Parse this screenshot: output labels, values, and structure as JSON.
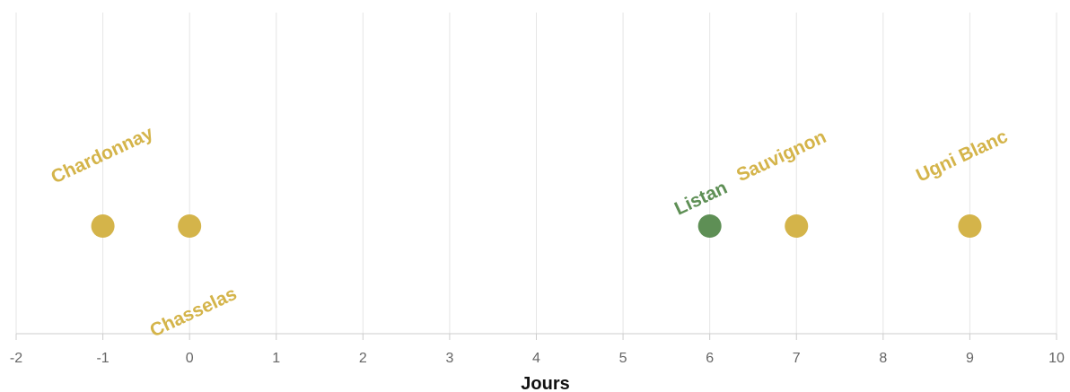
{
  "chart_data": {
    "type": "scatter",
    "xlabel": "Jours",
    "ylabel": "",
    "xlim": [
      -2,
      10
    ],
    "x_ticks": [
      -2,
      -1,
      0,
      1,
      2,
      3,
      4,
      5,
      6,
      7,
      8,
      9,
      10
    ],
    "grid": true,
    "points": [
      {
        "label": "Chardonnay",
        "x": -1,
        "color": "#D4B44A",
        "label_position": "above"
      },
      {
        "label": "Chasselas",
        "x": 0,
        "color": "#D4B44A",
        "label_position": "below"
      },
      {
        "label": "Listan",
        "x": 6,
        "color": "#5E8F55",
        "label_position": "above"
      },
      {
        "label": "Sauvignon",
        "x": 7,
        "color": "#D4B44A",
        "label_position": "above"
      },
      {
        "label": "Ugni Blanc",
        "x": 9,
        "color": "#D4B44A",
        "label_position": "above"
      }
    ]
  },
  "colors": {
    "gold": "#D4B44A",
    "green": "#5E8F55",
    "grid": "#e6e6e6",
    "axis": "#cccccc"
  }
}
